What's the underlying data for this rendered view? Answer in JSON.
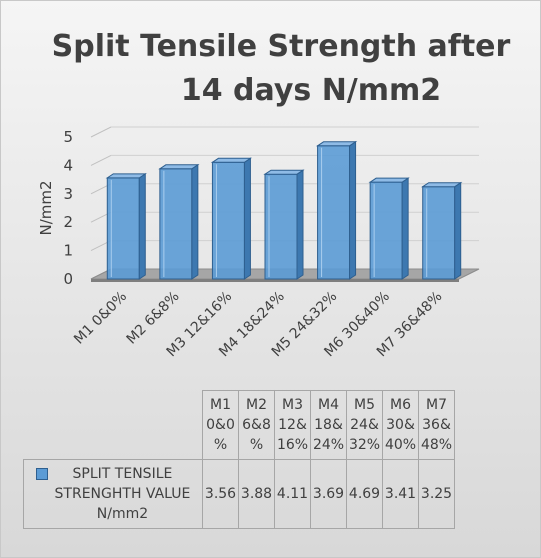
{
  "chart_data": {
    "type": "bar",
    "title": "Split Tensile Strength after 14 days N/mm2",
    "title_lines": [
      "Split Tensile Strength after",
      "14 days N/mm2"
    ],
    "ylabel": "N/mm2",
    "xlabel": "",
    "ylim": [
      0,
      5
    ],
    "yticks": [
      "0",
      "1",
      "2",
      "3",
      "4",
      "5"
    ],
    "categories": [
      "M1 0&0%",
      "M2 6&8%",
      "M3 12&16%",
      "M4 18&24%",
      "M5 24&32%",
      "M6 30&40%",
      "M7 36&48%"
    ],
    "series": [
      {
        "name": "SPLIT TENSILE STRENGHTH VALUE N/mm2",
        "values": [
          3.56,
          3.88,
          4.11,
          3.69,
          4.69,
          3.41,
          3.25
        ],
        "color": "#5b9bd5"
      }
    ],
    "grid": true,
    "legend": "data-table"
  },
  "table": {
    "headers": [
      "M1\n0&0\n%",
      "M2\n6&8\n%",
      "M3\n12&\n16%",
      "M4\n18&\n24%",
      "M5\n24&\n32%",
      "M6\n30&\n40%",
      "M7\n36&\n48%"
    ],
    "legend_label": "SPLIT TENSILE\nSTRENGHTH VALUE\nN/mm2",
    "values": [
      "3.56",
      "3.88",
      "4.11",
      "3.69",
      "4.69",
      "3.41",
      "3.25"
    ]
  }
}
